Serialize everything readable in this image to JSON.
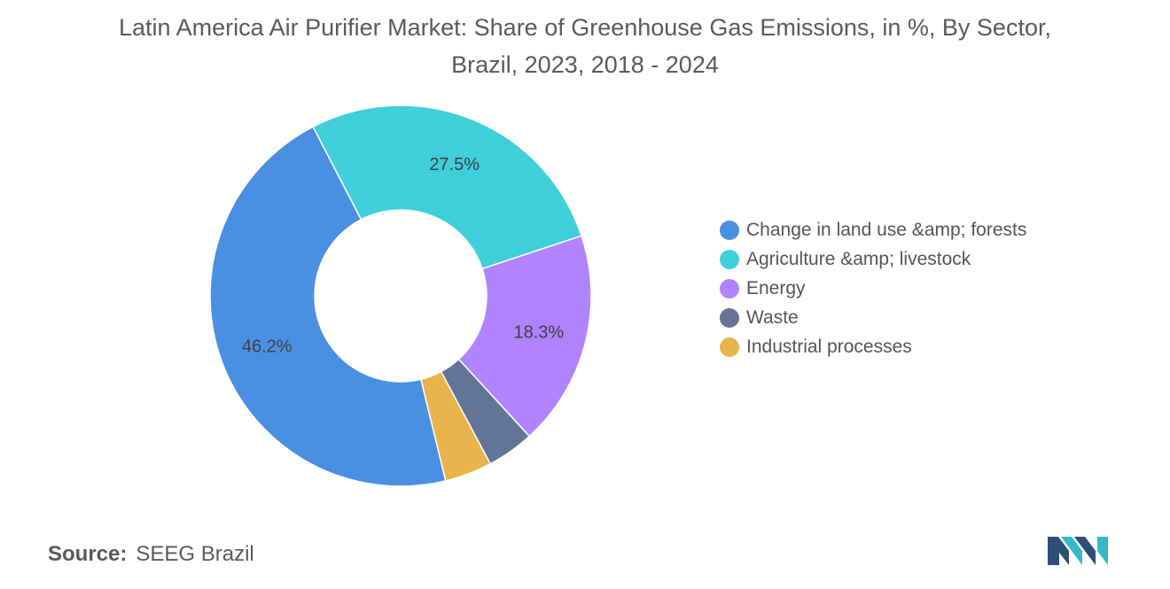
{
  "title": "Latin America Air Purifier Market: Share of Greenhouse Gas Emissions, in %, By Sector, Brazil, 2023, 2018 - 2024",
  "source": {
    "label": "Source:",
    "value": "SEEG Brazil"
  },
  "logo": {
    "icon": "mordor-intelligence-logo-icon",
    "colors": [
      "#2d4e79",
      "#35b9c6"
    ]
  },
  "chart_data": {
    "type": "pie",
    "donut": true,
    "categories": [
      "Change in land use &amp; forests",
      "Agriculture &amp; livestock",
      "Energy",
      "Waste",
      "Industrial processes"
    ],
    "values": [
      46.2,
      27.5,
      18.3,
      4.0,
      4.0
    ],
    "data_labels": [
      "46.2%",
      "27.5%",
      "18.3%",
      "",
      ""
    ],
    "colors": [
      "#4a90e2",
      "#3ecfdb",
      "#b083ff",
      "#627597",
      "#e9b44c"
    ],
    "legend_position": "right"
  }
}
